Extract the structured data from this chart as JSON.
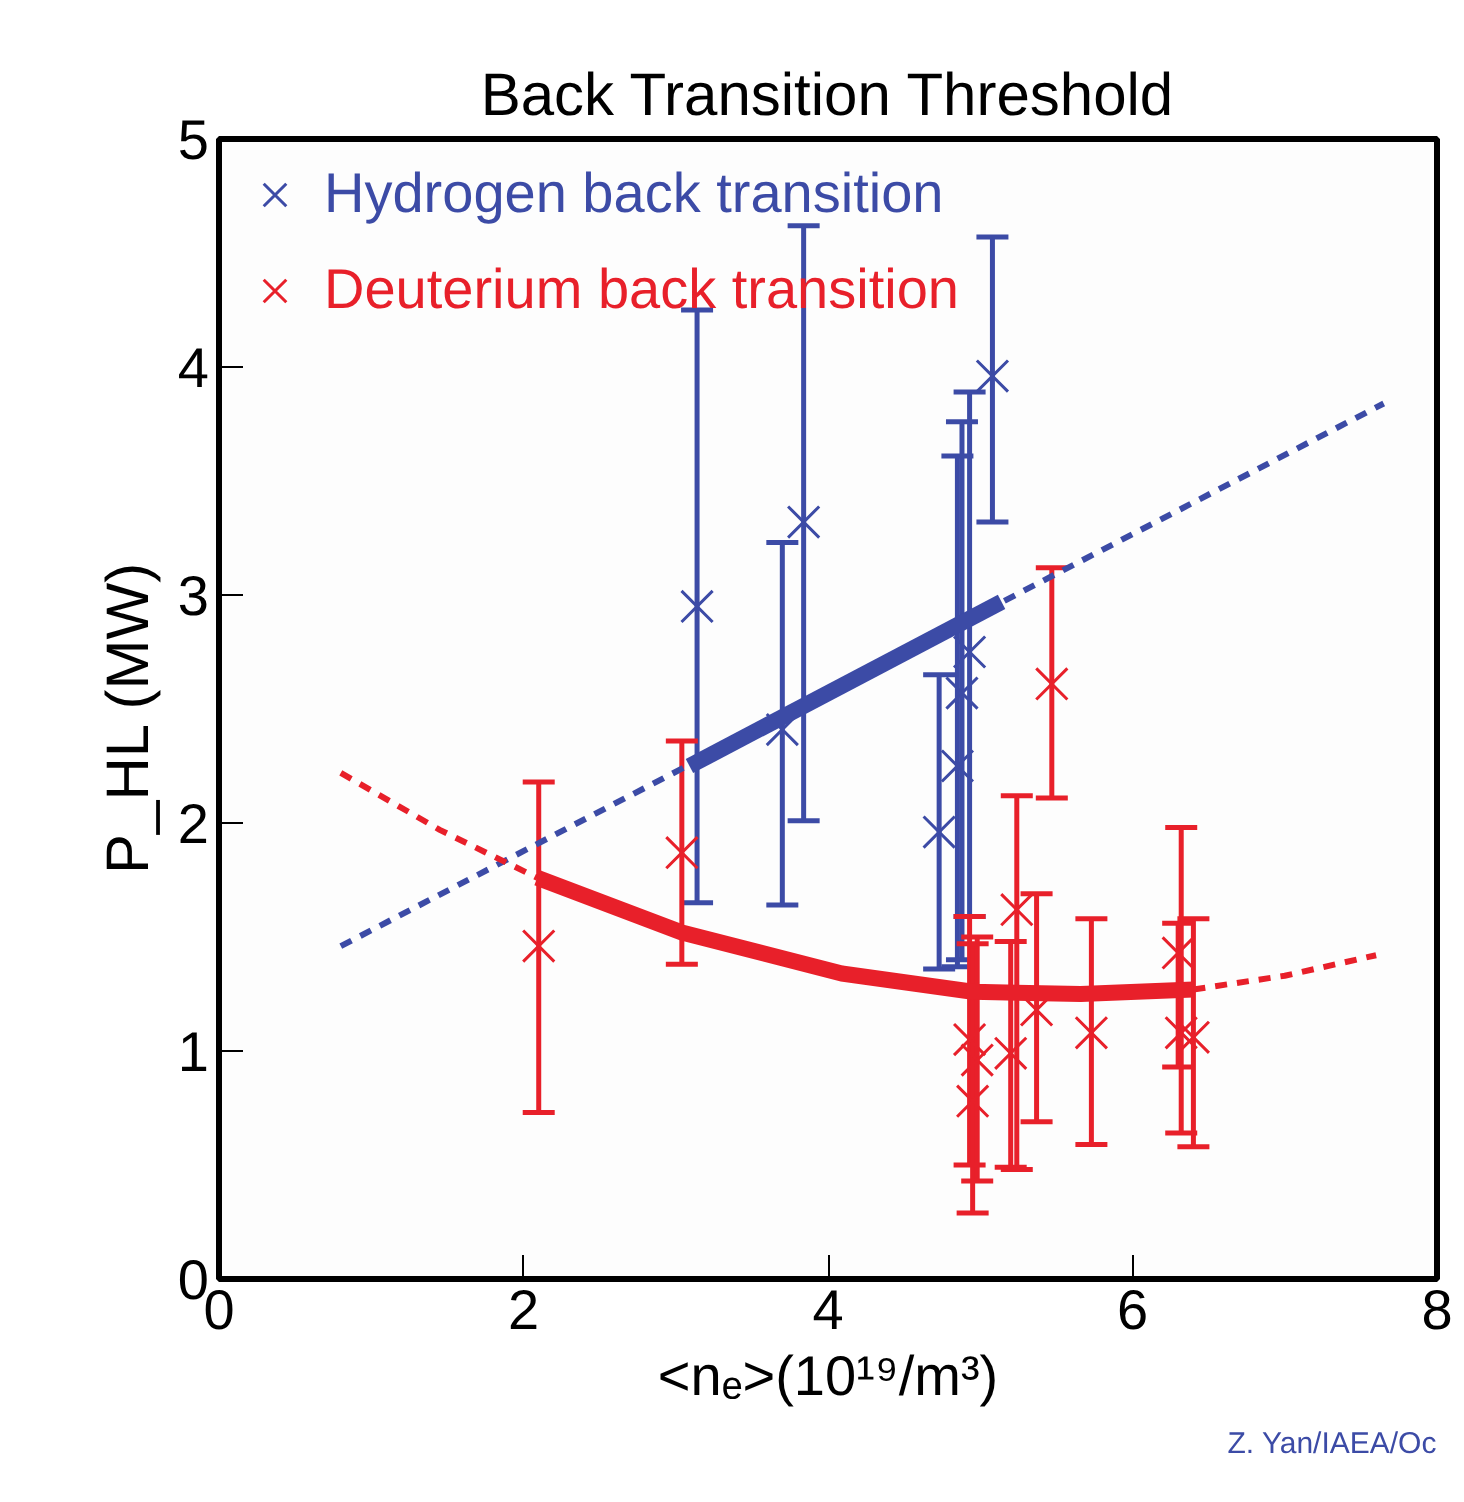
{
  "chart_data": {
    "type": "scatter",
    "title": "Back Transition Threshold",
    "xlabel": "<nₑ>(10¹⁹/m³)",
    "ylabel": "P_HL  (MW)",
    "xlim": [
      0,
      8
    ],
    "ylim": [
      0,
      5
    ],
    "xticks": [
      0,
      2,
      4,
      6,
      8
    ],
    "yticks": [
      0,
      1,
      2,
      3,
      4,
      5
    ],
    "grid": false,
    "legend": "top left",
    "annotations": [
      "Z. Yan/IAEA/Oc"
    ],
    "series": [
      {
        "name": "Hydrogen back transition",
        "marker": "cross",
        "color": "#3c4ba6",
        "x": [
          3.14,
          3.7,
          3.84,
          4.73,
          4.85,
          4.88,
          4.93,
          5.08
        ],
        "values": [
          2.95,
          2.41,
          3.32,
          1.96,
          2.25,
          2.57,
          2.75,
          3.96
        ],
        "errors": [
          [
            1.65,
            4.25
          ],
          [
            1.64,
            3.23
          ],
          [
            2.01,
            4.62
          ],
          [
            1.36,
            2.65
          ],
          [
            1.37,
            3.61
          ],
          [
            1.4,
            3.76
          ],
          [
            1.59,
            3.89
          ],
          [
            3.32,
            4.57
          ]
        ]
      },
      {
        "name": "Deuterium back transition",
        "marker": "cross",
        "color": "#e8202a",
        "x": [
          2.1,
          3.04,
          5.47,
          4.93,
          4.95,
          4.98,
          5.24,
          5.2,
          5.37,
          5.73,
          6.3,
          6.32,
          6.4
        ],
        "values": [
          1.46,
          1.87,
          2.61,
          1.05,
          0.78,
          0.96,
          1.62,
          0.99,
          1.18,
          1.08,
          1.43,
          1.08,
          1.06
        ],
        "errors": [
          [
            0.73,
            2.18
          ],
          [
            1.38,
            2.36
          ],
          [
            2.11,
            3.12
          ],
          [
            0.5,
            1.59
          ],
          [
            0.29,
            1.47
          ],
          [
            0.43,
            1.5
          ],
          [
            0.48,
            2.12
          ],
          [
            0.49,
            1.48
          ],
          [
            0.69,
            1.69
          ],
          [
            0.59,
            1.58
          ],
          [
            0.93,
            1.56
          ],
          [
            0.64,
            1.98
          ],
          [
            0.58,
            1.58
          ]
        ]
      },
      {
        "type": "line",
        "color": "#3c4ba6",
        "line_style": "dashed",
        "x": [
          0.8,
          7.65
        ],
        "values": [
          1.46,
          3.84
        ]
      },
      {
        "type": "line",
        "color": "#3c4ba6",
        "line_style": "solid",
        "x": [
          3.09,
          5.14
        ],
        "values": [
          2.25,
          2.97
        ]
      },
      {
        "type": "line",
        "color": "#e8202a",
        "line_style": "dashed",
        "x": [
          0.8,
          1.45,
          2.09
        ],
        "values": [
          2.22,
          1.97,
          1.76
        ]
      },
      {
        "type": "line",
        "color": "#e8202a",
        "line_style": "dashed",
        "x": [
          6.4,
          7.0,
          7.6
        ],
        "values": [
          1.27,
          1.33,
          1.42
        ]
      },
      {
        "type": "line",
        "color": "#e8202a",
        "line_style": "solid",
        "x": [
          2.09,
          3.04,
          4.09,
          4.95,
          5.66,
          6.4
        ],
        "values": [
          1.76,
          1.52,
          1.34,
          1.26,
          1.25,
          1.27
        ]
      }
    ]
  }
}
